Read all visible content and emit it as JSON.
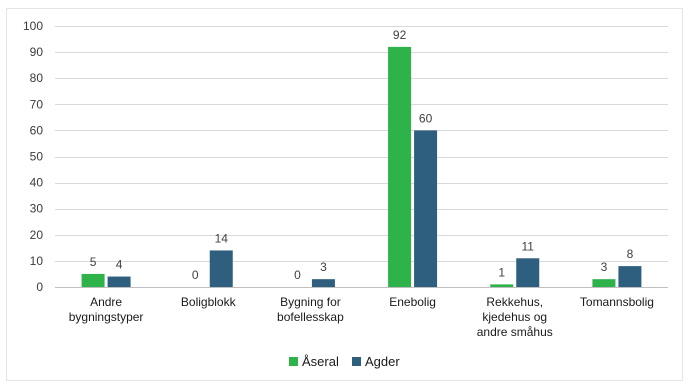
{
  "chart_data": {
    "type": "bar",
    "categories": [
      [
        "Andre",
        "bygningstyper"
      ],
      [
        "Boligblokk"
      ],
      [
        "Bygning for",
        "bofellesskap"
      ],
      [
        "Enebolig"
      ],
      [
        "Rekkehus,",
        "kjedehus og",
        "andre småhus"
      ],
      [
        "Tomannsbolig"
      ]
    ],
    "series": [
      {
        "name": "Åseral",
        "color": "#2db34a",
        "values": [
          5,
          0,
          0,
          92,
          1,
          3
        ]
      },
      {
        "name": "Agder",
        "color": "#2e5f7f",
        "values": [
          4,
          14,
          3,
          60,
          11,
          8
        ]
      }
    ],
    "ylim": [
      0,
      100
    ],
    "yticks": [
      0,
      10,
      20,
      30,
      40,
      50,
      60,
      70,
      80,
      90,
      100
    ],
    "grid": true,
    "legend_position": "bottom",
    "data_labels": true
  }
}
